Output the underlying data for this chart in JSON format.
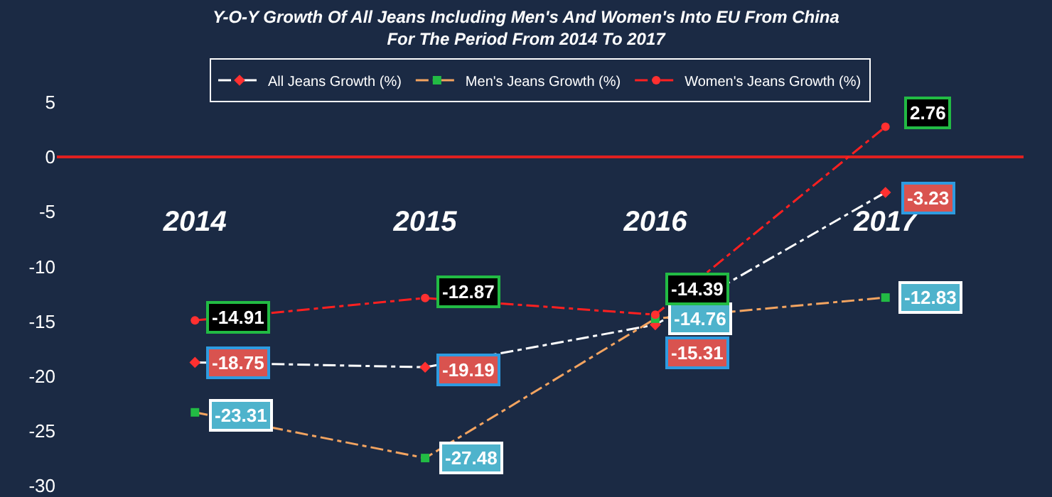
{
  "chart_data": {
    "type": "line",
    "title": "Y-O-Y Growth Of All Jeans Including Men's And Women's Into EU From China\nFor The Period From 2014 To 2017",
    "categories": [
      "2014",
      "2015",
      "2016",
      "2017"
    ],
    "series": [
      {
        "name": "All Jeans Growth (%)",
        "color": "#ffffff",
        "values": [
          -18.75,
          -19.19,
          -15.31,
          -3.23
        ],
        "marker": "diamond",
        "line_style": "dashed"
      },
      {
        "name": "Men's Jeans Growth (%)",
        "color": "#f4a460",
        "values": [
          -23.31,
          -27.48,
          -14.76,
          -12.83
        ],
        "marker": "square",
        "line_style": "dashed"
      },
      {
        "name": "Women's Jeans Growth (%)",
        "color": "#ff2020",
        "values": [
          -14.91,
          -12.87,
          -14.39,
          2.76
        ],
        "marker": "circle",
        "line_style": "dashed"
      }
    ],
    "ylim": [
      -30,
      5
    ],
    "yticks": [
      -30,
      -25,
      -20,
      -15,
      -10,
      -5,
      0,
      5
    ],
    "grid": false,
    "legend": "top",
    "data_labels": true
  }
}
